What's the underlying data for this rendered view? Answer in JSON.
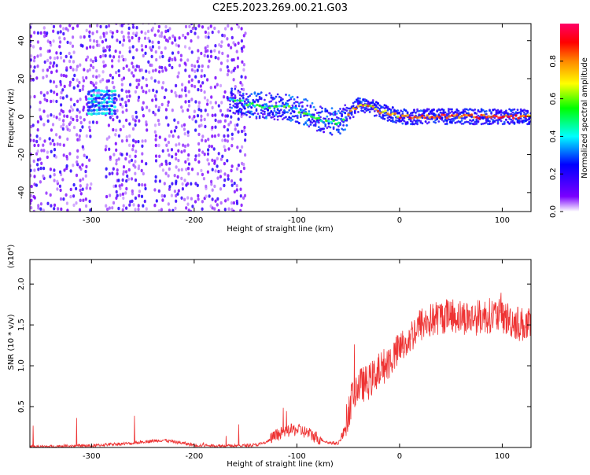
{
  "figure": {
    "title": "C2E5.2023.269.00.21.G03"
  },
  "colors": {
    "snr_line": "#ee3333",
    "frame": "#000000"
  },
  "chart_data": [
    {
      "type": "heatmap",
      "title": "C2E5.2023.269.00.21.G03",
      "xlabel": "Height of straight line (km)",
      "ylabel": "Frequency (Hz)",
      "xlim": [
        -360,
        128
      ],
      "ylim": [
        -50,
        49
      ],
      "xticks": [
        -300,
        -200,
        -100,
        0,
        100
      ],
      "yticks": [
        -40,
        -20,
        0,
        20,
        40
      ],
      "colorbar": {
        "label": "Normalized spectral amplitude",
        "range": [
          0,
          1
        ],
        "ticks": [
          "0.0",
          "0.2",
          "0.4",
          "0.6",
          "0.8"
        ],
        "colormap": [
          "#ffffff",
          "#7a00ff",
          "#0000ff",
          "#00ffff",
          "#00ff00",
          "#ffff00",
          "#ff8800",
          "#ff0000",
          "#ff0066"
        ]
      },
      "features": [
        {
          "name": "broadband noise",
          "x_range": [
            -360,
            -150
          ],
          "freq_range": [
            -50,
            49
          ],
          "amplitude": 0.15
        },
        {
          "name": "early burst",
          "x_range": [
            -303,
            -278
          ],
          "freq_range": [
            1,
            14
          ],
          "amplitude": 0.4
        },
        {
          "name": "scattered trace",
          "x_range": [
            -165,
            -50
          ],
          "freq_range": [
            -12,
            12
          ],
          "amplitude": 0.35
        },
        {
          "name": "signal trace",
          "points": [
            [
              -165,
              9
            ],
            [
              -140,
              6
            ],
            [
              -110,
              5
            ],
            [
              -90,
              2
            ],
            [
              -75,
              -2
            ],
            [
              -60,
              -3
            ],
            [
              -50,
              1
            ],
            [
              -40,
              6
            ],
            [
              -30,
              6
            ],
            [
              -20,
              3
            ],
            [
              0,
              0
            ],
            [
              50,
              0
            ],
            [
              128,
              0
            ]
          ],
          "amplitude": 0.9
        }
      ]
    },
    {
      "type": "line",
      "xlabel": "Height of straight line (km)",
      "ylabel": "SNR (10 * v/v)",
      "y_multiplier": "(x10⁴)",
      "xlim": [
        -360,
        128
      ],
      "ylim": [
        0,
        2.3
      ],
      "xticks": [
        -300,
        -200,
        -100,
        0,
        100
      ],
      "yticks": [
        0.5,
        1.0,
        1.5,
        2.0
      ],
      "series": [
        {
          "x": [
            -360,
            -340,
            -320,
            -300,
            -280,
            -260,
            -250,
            -240,
            -230,
            -220,
            -210,
            -200,
            -180,
            -160,
            -140,
            -130,
            -120,
            -110,
            -100,
            -90,
            -80,
            -70,
            -60,
            -55,
            -50,
            -45,
            -40,
            -30,
            -20,
            -10,
            0,
            10,
            20,
            30,
            40,
            50,
            60,
            70,
            80,
            90,
            100,
            110,
            120,
            128
          ],
          "y": [
            0.01,
            0.01,
            0.02,
            0.02,
            0.04,
            0.05,
            0.07,
            0.08,
            0.09,
            0.07,
            0.05,
            0.03,
            0.02,
            0.02,
            0.03,
            0.06,
            0.15,
            0.2,
            0.22,
            0.18,
            0.12,
            0.06,
            0.05,
            0.15,
            0.4,
            0.7,
            0.75,
            0.8,
            0.95,
            1.05,
            1.2,
            1.35,
            1.5,
            1.55,
            1.6,
            1.62,
            1.6,
            1.58,
            1.6,
            1.62,
            1.6,
            1.55,
            1.5,
            1.48
          ]
        }
      ]
    }
  ]
}
